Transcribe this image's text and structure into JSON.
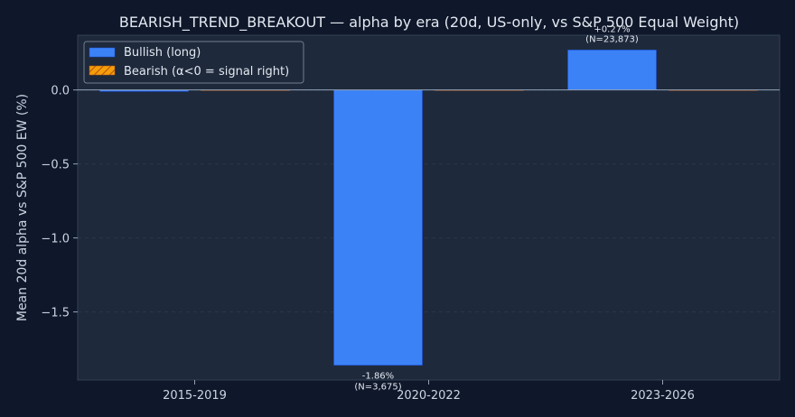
{
  "chart_data": {
    "type": "bar",
    "title": "BEARISH_TREND_BREAKOUT — alpha by era (20d, US-only, vs S&P 500 Equal Weight)",
    "xlabel": "",
    "ylabel": "Mean 20d alpha vs S&P 500 EW (%)",
    "categories": [
      "2015-2019",
      "2020-2022",
      "2023-2026"
    ],
    "series": [
      {
        "name": "Bullish (long)",
        "color": "#3b82f6",
        "values": [
          -0.01,
          -1.86,
          0.27
        ],
        "labels": [
          "",
          "-1.86%",
          "+0.27%"
        ],
        "n_labels": [
          "",
          "(N=3,675)",
          "(N=23,873)"
        ]
      },
      {
        "name": "Bearish (α<0 = signal right)",
        "color": "#f59e0b",
        "hatch": true,
        "values": [
          0.0,
          0.0,
          0.0
        ],
        "labels": [
          "",
          "",
          ""
        ],
        "n_labels": [
          "",
          "",
          ""
        ]
      }
    ],
    "ylim": [
      -1.96,
      0.37
    ],
    "yticks": [
      0.0,
      -0.5,
      -1.0,
      -1.5
    ],
    "ytick_labels": [
      "0.0",
      "−0.5",
      "−1.0",
      "−1.5"
    ],
    "grid": true,
    "zero_line": true,
    "legend_position": "top-left",
    "colors": {
      "background": "#0f172a",
      "plot_background": "#1e293b",
      "text": "#e2e8f0",
      "tick_text": "#cbd5e1",
      "grid": "#334155",
      "zero_line": "#94a3b8"
    }
  }
}
